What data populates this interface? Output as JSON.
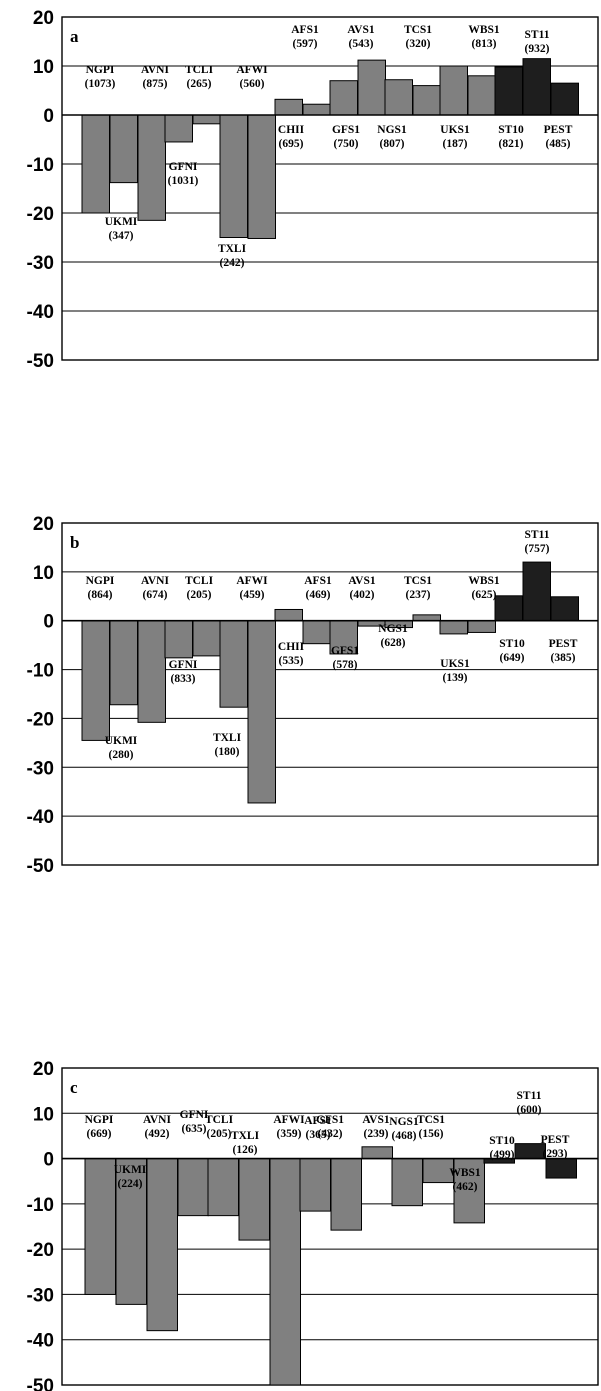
{
  "chart_data": [
    {
      "type": "bar",
      "panel_label": "a",
      "ylim": [
        -50,
        20
      ],
      "yticks": [
        "20",
        "10",
        "0",
        "-10",
        "-20",
        "-30",
        "-40",
        "-50"
      ],
      "grid": true,
      "categories": [
        "NGPI",
        "UKMI",
        "AVNI",
        "GFNI",
        "TCLI",
        "TXLI",
        "AFWI",
        "CHII",
        "AFS1",
        "GFS1",
        "AVS1",
        "NGS1",
        "TCS1",
        "UKS1",
        "WBS1",
        "ST10",
        "ST11",
        "PEST"
      ],
      "counts": [
        "(1073)",
        "(347)",
        "(875)",
        "(1031)",
        "(265)",
        "(242)",
        "(560)",
        "(695)",
        "(597)",
        "(750)",
        "(543)",
        "(807)",
        "(320)",
        "(187)",
        "(813)",
        "(821)",
        "(932)",
        "(485)"
      ],
      "values": [
        -20,
        -13.8,
        -21.5,
        -5.5,
        -1.8,
        -25,
        -25.2,
        3.2,
        2.2,
        7,
        11.2,
        7.2,
        6,
        10,
        8,
        9.8,
        11.5,
        6.5
      ],
      "bar_colors": [
        "#808080",
        "#808080",
        "#808080",
        "#808080",
        "#808080",
        "#808080",
        "#808080",
        "#808080",
        "#808080",
        "#808080",
        "#808080",
        "#808080",
        "#808080",
        "#808080",
        "#808080",
        "#1e1e1e",
        "#1e1e1e",
        "#1e1e1e"
      ]
    },
    {
      "type": "bar",
      "panel_label": "b",
      "ylim": [
        -50,
        20
      ],
      "yticks": [
        "20",
        "10",
        "0",
        "-10",
        "-20",
        "-30",
        "-40",
        "-50"
      ],
      "grid": true,
      "categories": [
        "NGPI",
        "UKMI",
        "AVNI",
        "GFNI",
        "TCLI",
        "TXLI",
        "AFWI",
        "CHII",
        "AFS1",
        "GFS1",
        "AVS1",
        "NGS1",
        "TCS1",
        "UKS1",
        "WBS1",
        "ST10",
        "ST11",
        "PEST"
      ],
      "counts": [
        "(864)",
        "(280)",
        "(674)",
        "(833)",
        "(205)",
        "(180)",
        "(459)",
        "(535)",
        "(469)",
        "(578)",
        "(402)",
        "(628)",
        "(237)",
        "(139)",
        "(625)",
        "(649)",
        "(757)",
        "(385)"
      ],
      "values": [
        -24.5,
        -17.2,
        -20.8,
        -7.6,
        -7.2,
        -17.7,
        -37.3,
        2.3,
        -4.7,
        -6.8,
        -1.1,
        -1.4,
        1.2,
        -2.7,
        -2.4,
        5.1,
        12,
        4.9
      ],
      "bar_colors": [
        "#808080",
        "#808080",
        "#808080",
        "#808080",
        "#808080",
        "#808080",
        "#808080",
        "#808080",
        "#808080",
        "#808080",
        "#808080",
        "#808080",
        "#808080",
        "#808080",
        "#808080",
        "#1e1e1e",
        "#1e1e1e",
        "#1e1e1e"
      ]
    },
    {
      "type": "bar",
      "panel_label": "c",
      "ylim": [
        -50,
        20
      ],
      "yticks": [
        "20",
        "10",
        "0",
        "-10",
        "-20",
        "-30",
        "-40",
        "-50"
      ],
      "grid": true,
      "categories": [
        "NGPI",
        "UKMI",
        "AVNI",
        "GFNI",
        "TCLI",
        "TXLI",
        "AFWI",
        "AFS1",
        "GFS1",
        "AVS1",
        "NGS1",
        "TCS1",
        "WBS1",
        "ST10",
        "ST11",
        "PEST"
      ],
      "counts": [
        "(669)",
        "(224)",
        "(492)",
        "(635)",
        "(205)",
        "(126)",
        "(359)",
        "(365)",
        "(432)",
        "(239)",
        "(468)",
        "(156)",
        "(462)",
        "(499)",
        "(600)",
        "(293)"
      ],
      "values": [
        -30,
        -32.2,
        -38,
        -12.6,
        -12.6,
        -18,
        -54,
        -11.6,
        -15.8,
        2.6,
        -10.4,
        -5.3,
        -14.2,
        -1,
        3.3,
        -4.3
      ],
      "bar_colors": [
        "#808080",
        "#808080",
        "#808080",
        "#808080",
        "#808080",
        "#808080",
        "#808080",
        "#808080",
        "#808080",
        "#808080",
        "#808080",
        "#808080",
        "#808080",
        "#1e1e1e",
        "#1e1e1e",
        "#1e1e1e"
      ]
    }
  ]
}
